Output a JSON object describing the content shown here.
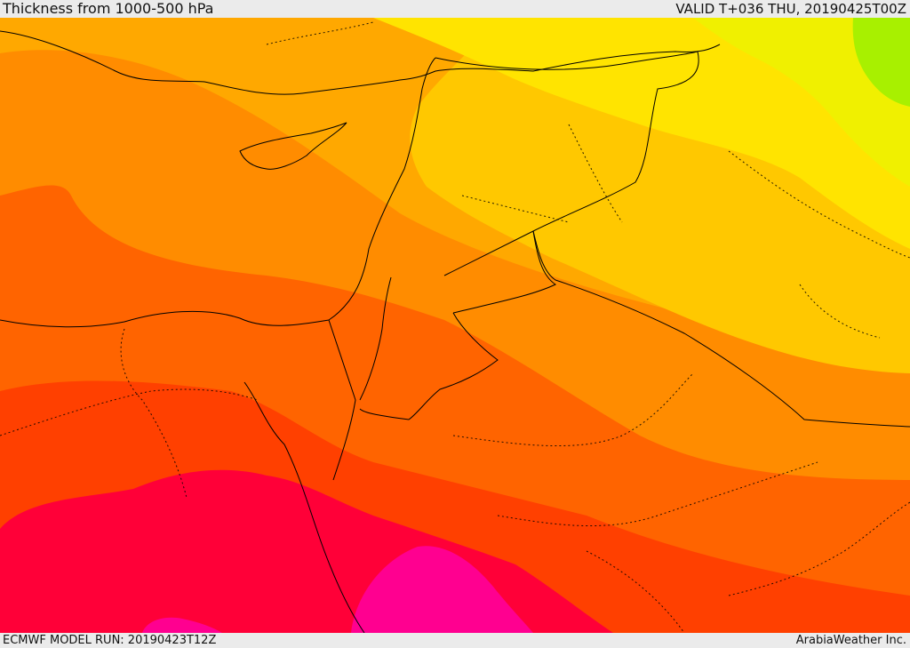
{
  "header": {
    "title": "Thickness from 1000-500 hPa",
    "valid": "VALID T+036 THU, 20190425T00Z"
  },
  "footer": {
    "model_run": "ECMWF MODEL RUN: 20190423T12Z",
    "brand": "ArabiaWeather Inc."
  },
  "map": {
    "field": "1000-500 hPa thickness",
    "colors": {
      "green": "#a8f000",
      "light_yellow": "#f0f000",
      "yellow": "#ffe400",
      "yellow_orange": "#ffc800",
      "light_orange": "#ffa800",
      "orange": "#ff8c00",
      "dark_orange": "#ff6400",
      "red_orange": "#ff4000",
      "red": "#ff0038",
      "magenta": "#ff0090",
      "borders": "#000000"
    }
  }
}
